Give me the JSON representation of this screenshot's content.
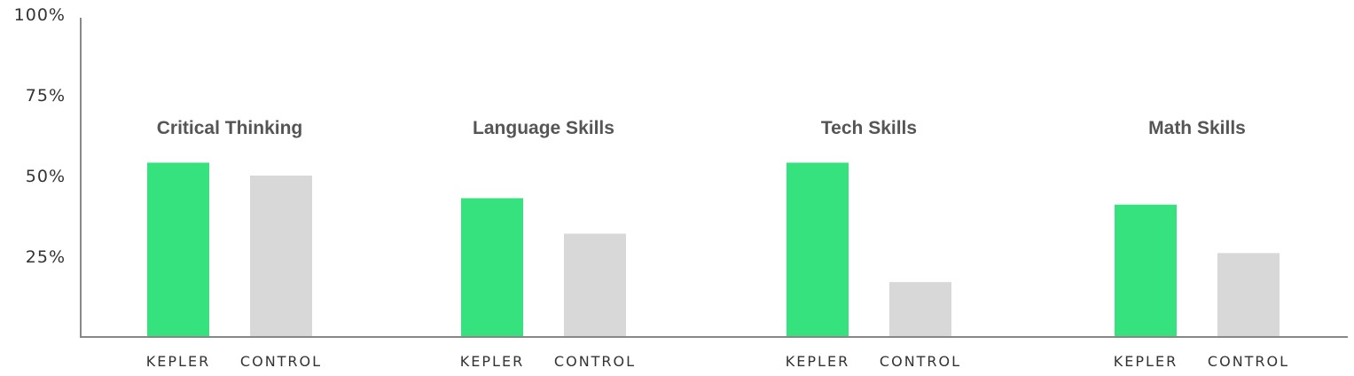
{
  "chart_data": {
    "type": "bar",
    "categories": [
      "Critical Thinking",
      "Language Skills",
      "Tech Skills",
      "Math Skills"
    ],
    "series": [
      {
        "name": "KEPLER",
        "values": [
          54,
          43,
          54,
          41
        ]
      },
      {
        "name": "CONTROL",
        "values": [
          50,
          32,
          17,
          26
        ]
      }
    ],
    "ylim": [
      0,
      100
    ],
    "yticks": [
      25,
      50,
      75,
      100
    ],
    "ytick_labels": [
      "25%",
      "50%",
      "75%",
      "100%"
    ],
    "title": "",
    "xlabel": "",
    "ylabel": "",
    "grid": false,
    "colors": {
      "KEPLER": "#35e27e",
      "CONTROL": "#d8d8d8",
      "axis": "#888888",
      "text": "#333333",
      "group_title": "#555555"
    }
  }
}
